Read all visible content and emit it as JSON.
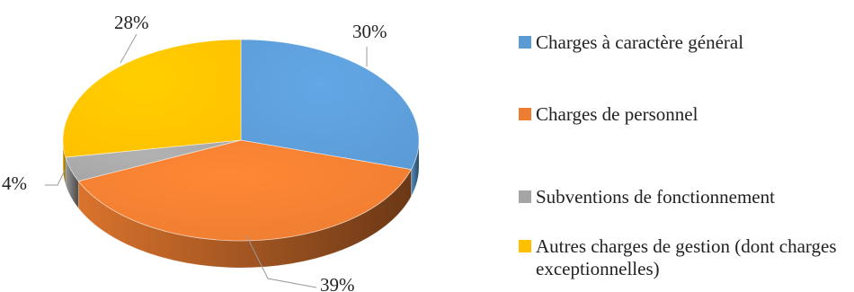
{
  "chart_data": {
    "type": "pie",
    "variant": "3d",
    "title": "",
    "slices": [
      {
        "label": "Charges à caractère général",
        "value": 30,
        "display": "30%",
        "color": "#5B9BD5"
      },
      {
        "label": "Charges de personnel",
        "value": 39,
        "display": "39%",
        "color": "#ED7D31"
      },
      {
        "label": "Subventions de fonctionnement",
        "value": 4,
        "display": "4%",
        "color": "#A5A5A5"
      },
      {
        "label": "Autres charges de gestion (dont charges exceptionnelles)",
        "value": 28,
        "display": "28%",
        "color": "#FFC000"
      }
    ],
    "legend_position": "right"
  }
}
